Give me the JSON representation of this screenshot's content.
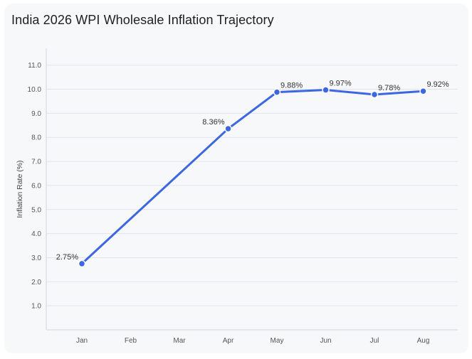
{
  "chart_data": {
    "type": "line",
    "title": "India 2026 WPI Wholesale Inflation Trajectory",
    "xlabel": "",
    "ylabel": "Inflation Rate (%)",
    "categories": [
      "Jan",
      "Feb",
      "Mar",
      "Apr",
      "May",
      "Jun",
      "Jul",
      "Aug"
    ],
    "y_ticks": [
      "1.0",
      "2.0",
      "3.0",
      "4.0",
      "5.0",
      "6.0",
      "7.0",
      "8.0",
      "9.0",
      "10.0",
      "11.0"
    ],
    "ylim": [
      0,
      11.7
    ],
    "grid": true,
    "series": [
      {
        "points": [
          {
            "x": "Jan",
            "y": 2.75,
            "label": "2.75%"
          },
          {
            "x": "Apr",
            "y": 8.36,
            "label": "8.36%"
          },
          {
            "x": "May",
            "y": 9.88,
            "label": "9.88%"
          },
          {
            "x": "Jun",
            "y": 9.97,
            "label": "9.97%"
          },
          {
            "x": "Jul",
            "y": 9.78,
            "label": "9.78%"
          },
          {
            "x": "Aug",
            "y": 9.92,
            "label": "9.92%"
          }
        ],
        "color": "#3c67e0"
      }
    ]
  }
}
